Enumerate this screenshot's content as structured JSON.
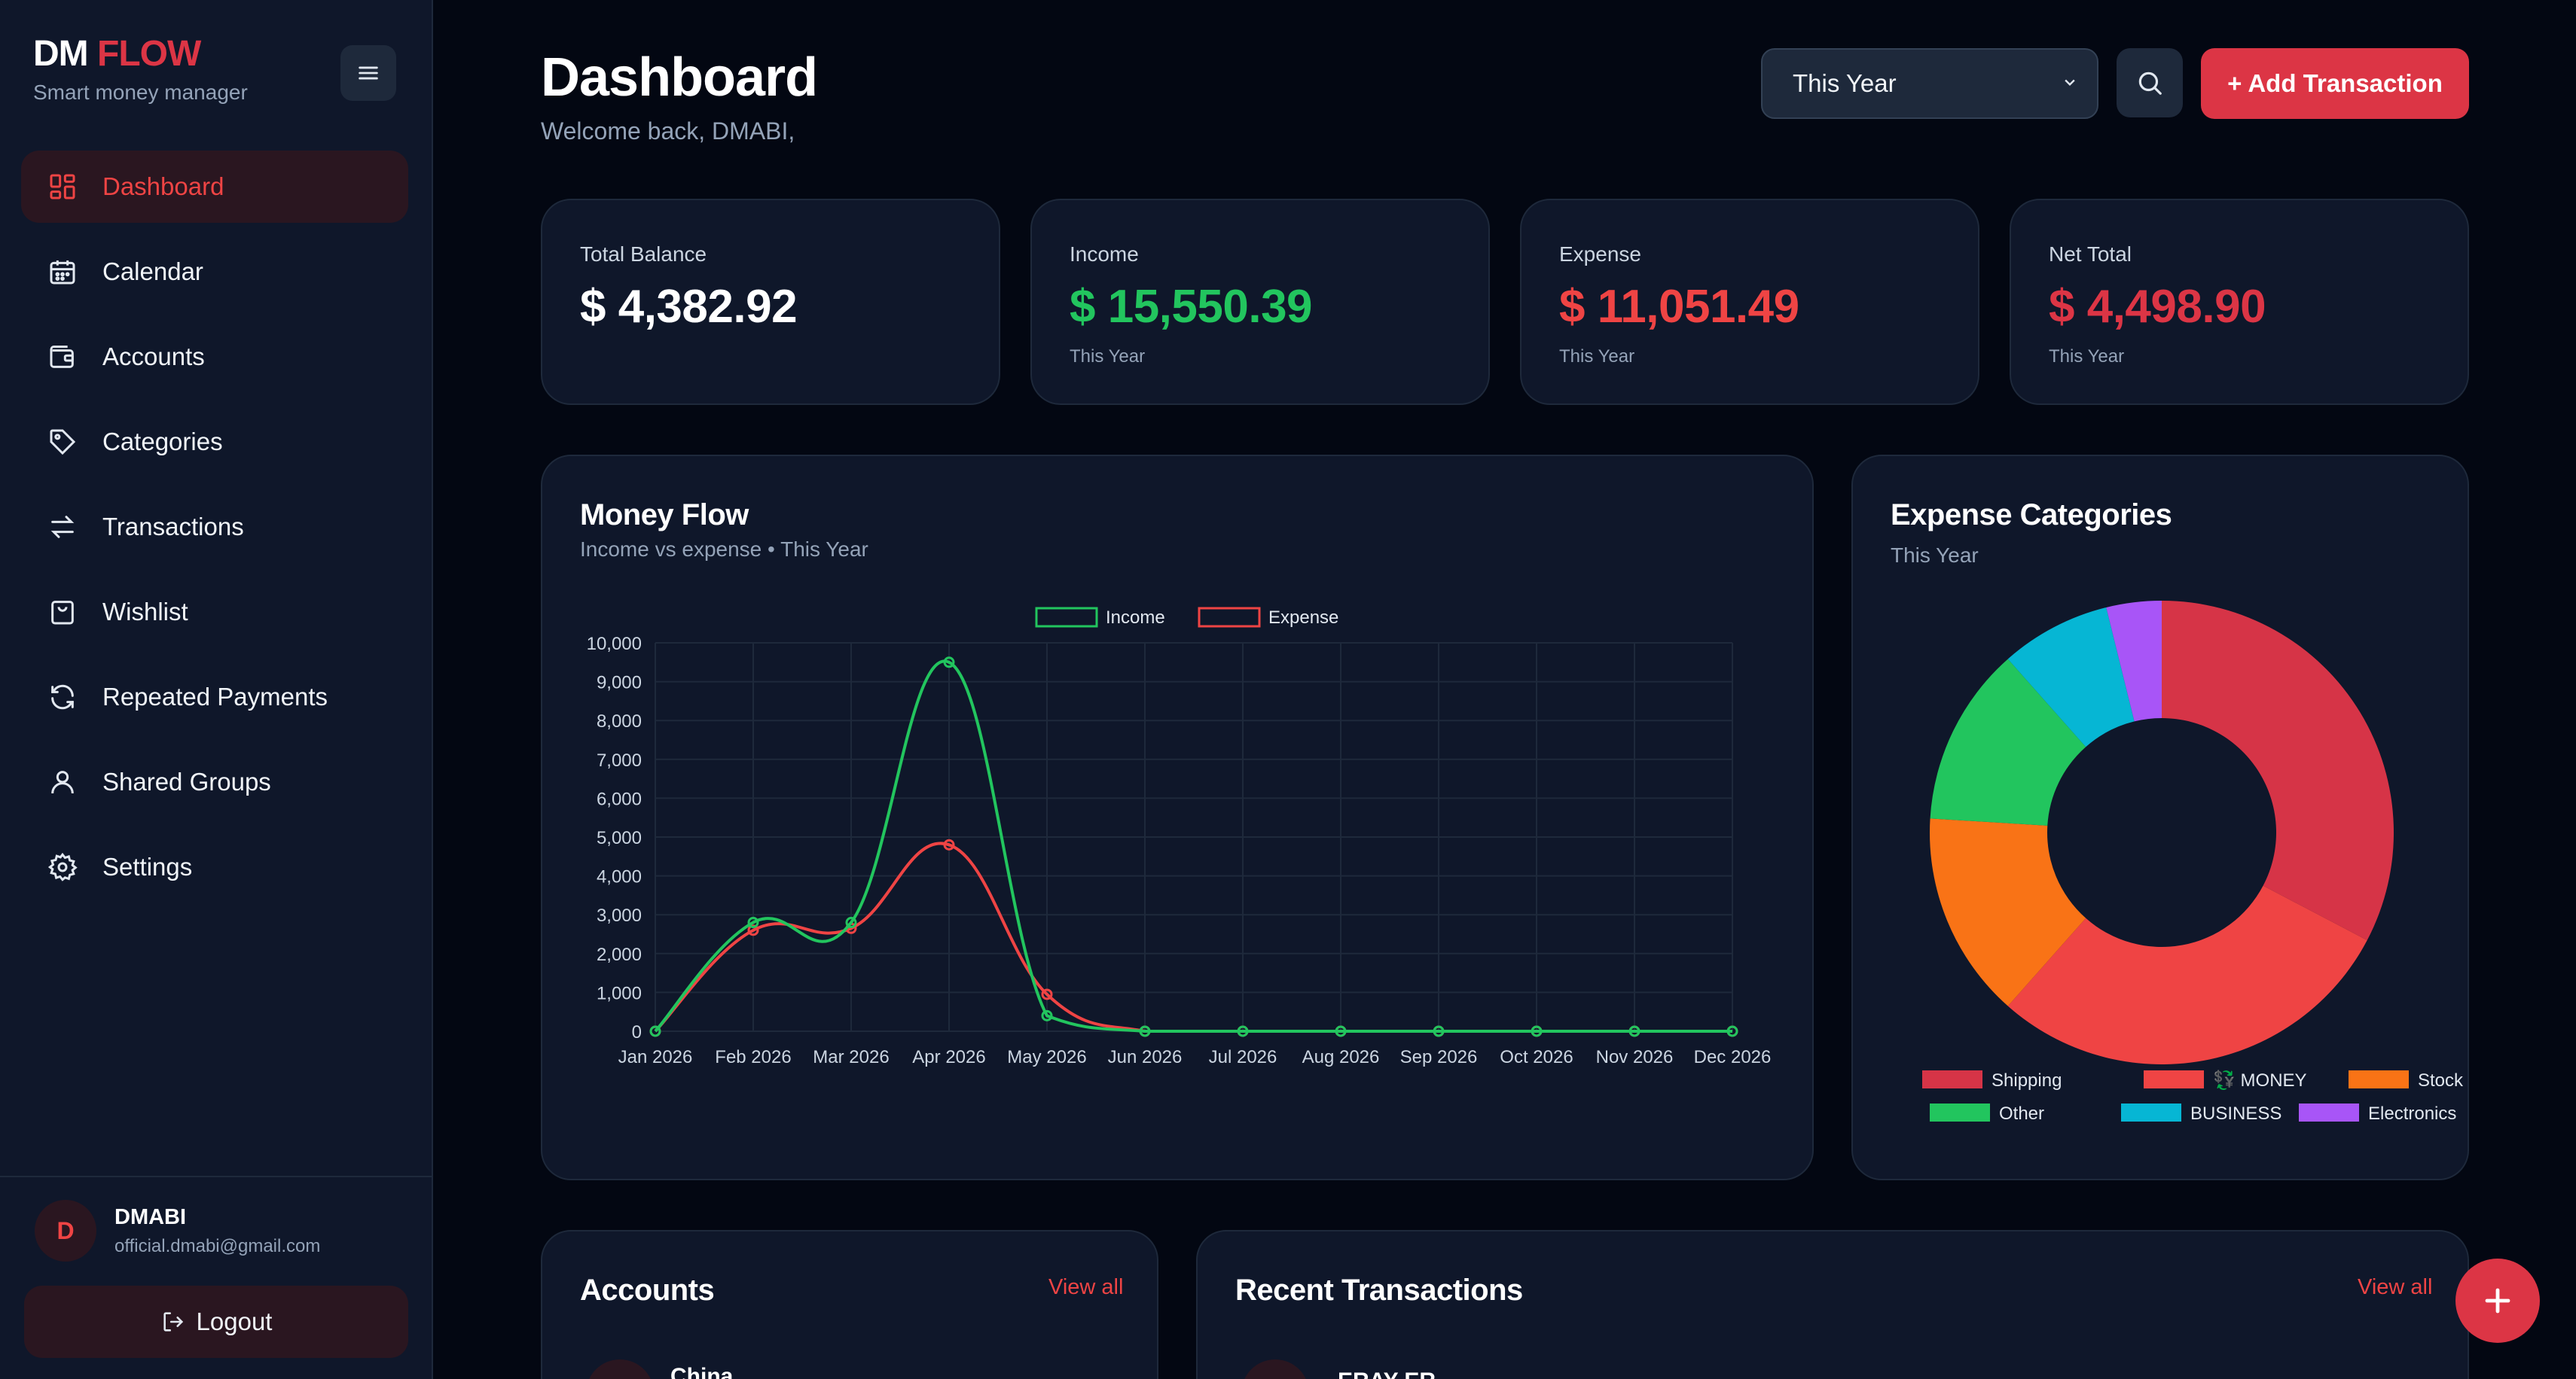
{
  "brand": {
    "name_part1": "DM",
    "name_part2": "FLOW",
    "tagline": "Smart money manager"
  },
  "nav": {
    "items": [
      {
        "label": "Dashboard",
        "icon": "grid-icon",
        "active": true
      },
      {
        "label": "Calendar",
        "icon": "calendar-icon"
      },
      {
        "label": "Accounts",
        "icon": "wallet-icon"
      },
      {
        "label": "Categories",
        "icon": "tag-icon"
      },
      {
        "label": "Transactions",
        "icon": "swap-icon"
      },
      {
        "label": "Wishlist",
        "icon": "bag-icon"
      },
      {
        "label": "Repeated Payments",
        "icon": "refresh-icon"
      },
      {
        "label": "Shared Groups",
        "icon": "user-icon"
      },
      {
        "label": "Settings",
        "icon": "gear-icon"
      }
    ]
  },
  "user": {
    "initial": "D",
    "name": "DMABI",
    "email": "official.dmabi@gmail.com"
  },
  "logout_label": "Logout",
  "header": {
    "title": "Dashboard",
    "subtitle": "Welcome back, DMABI,",
    "period": "This Year",
    "add_label": "+ Add Transaction"
  },
  "stats": [
    {
      "label": "Total Balance",
      "value": "$ 4,382.92",
      "period": "",
      "color": "#ffffff"
    },
    {
      "label": "Income",
      "value": "$ 15,550.39",
      "period": "This Year",
      "color": "#22c55e"
    },
    {
      "label": "Expense",
      "value": "$ 11,051.49",
      "period": "This Year",
      "color": "#ef4444"
    },
    {
      "label": "Net Total",
      "value": "$ 4,498.90",
      "period": "This Year",
      "color": "#dc3545"
    }
  ],
  "money_flow": {
    "title": "Money Flow",
    "subtitle": "Income vs expense • This Year"
  },
  "expense_categories": {
    "title": "Expense Categories",
    "subtitle": "This Year"
  },
  "accounts": {
    "title": "Accounts",
    "view_all": "View all",
    "first_item": "China"
  },
  "recent_transactions": {
    "title": "Recent Transactions",
    "view_all": "View all",
    "first_item": "ERAY ER"
  },
  "chart_data": [
    {
      "type": "line",
      "title": "",
      "categories": [
        "Jan 2026",
        "Feb 2026",
        "Mar 2026",
        "Apr 2026",
        "May 2026",
        "Jun 2026",
        "Jul 2026",
        "Aug 2026",
        "Sep 2026",
        "Oct 2026",
        "Nov 2026",
        "Dec 2026"
      ],
      "series": [
        {
          "name": "Income",
          "color": "#22c55e",
          "values": [
            0,
            2800,
            2800,
            9500,
            400,
            0,
            0,
            0,
            0,
            0,
            0,
            0
          ]
        },
        {
          "name": "Expense",
          "color": "#ef4444",
          "values": [
            0,
            2600,
            2650,
            4800,
            950,
            0,
            0,
            0,
            0,
            0,
            0,
            0
          ]
        }
      ],
      "ylim": [
        0,
        10000
      ],
      "yticks": [
        "0",
        "1,000",
        "2,000",
        "3,000",
        "4,000",
        "5,000",
        "6,000",
        "7,000",
        "8,000",
        "9,000",
        "10,000"
      ],
      "grid": true,
      "legend": "top-center"
    },
    {
      "type": "pie",
      "donut": true,
      "slices": [
        {
          "name": "Shipping",
          "value": 34,
          "color": "#d63447"
        },
        {
          "name": "💱 MONEY",
          "value": 30,
          "color": "#ef4444"
        },
        {
          "name": "Stock",
          "value": 15,
          "color": "#f97316"
        },
        {
          "name": "Other",
          "value": 13,
          "color": "#22c55e"
        },
        {
          "name": "BUSINESS",
          "value": 8,
          "color": "#06b6d4"
        },
        {
          "name": "Electronics",
          "value": 4,
          "color": "#a855f7"
        }
      ],
      "legend": "bottom"
    }
  ]
}
